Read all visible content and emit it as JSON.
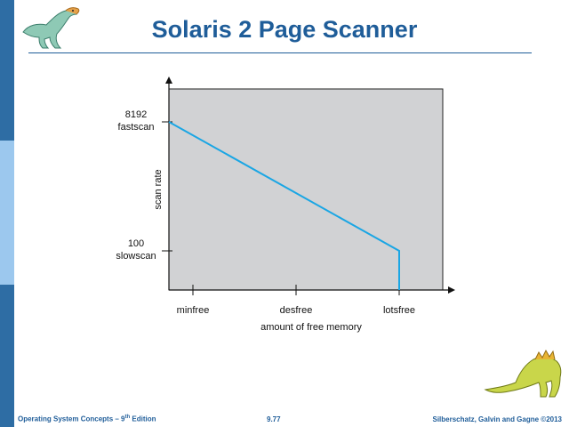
{
  "slide": {
    "title": "Solaris 2 Page Scanner",
    "footer_left_prefix": "Operating System Concepts – 9",
    "footer_left_sup": "th",
    "footer_left_suffix": " Edition",
    "footer_center": "9.77",
    "footer_right": "Silberschatz, Galvin and Gagne ©2013"
  },
  "colors": {
    "accent": "#1f5d99",
    "plot_bg": "#d1d2d4",
    "line": "#1aa6e4"
  },
  "icons": {
    "top": "dinosaur-icon",
    "bottom": "dinosaur-icon"
  },
  "chart_data": {
    "type": "line",
    "title": "",
    "xlabel": "amount of free memory",
    "ylabel": "scan rate",
    "xticks": [
      {
        "label": "minfree",
        "x": 1
      },
      {
        "label": "desfree",
        "x": 2
      },
      {
        "label": "lotsfree",
        "x": 3
      }
    ],
    "yticks": [
      {
        "label_top": "8192",
        "label_bottom": "fastscan",
        "level": "fastscan"
      },
      {
        "label_top": "100",
        "label_bottom": "slowscan",
        "level": "slowscan"
      }
    ],
    "series": [
      {
        "points": [
          {
            "x": 0,
            "y": "fastscan"
          },
          {
            "x": 3,
            "y": "slowscan"
          },
          {
            "x": 3,
            "y": 0
          }
        ]
      }
    ],
    "grid": false
  }
}
